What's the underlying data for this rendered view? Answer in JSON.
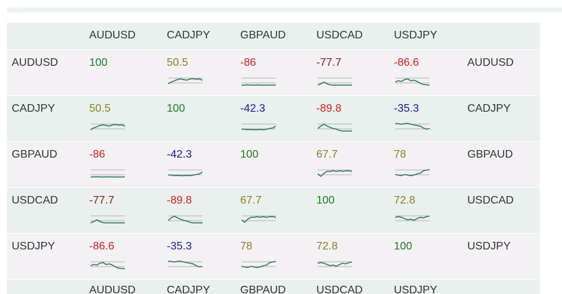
{
  "symbols": [
    "AUDUSD",
    "CADJPY",
    "GBPAUD",
    "USDCAD",
    "USDJPY"
  ],
  "colors": {
    "strong_positive": "#1b7d1b",
    "moderate_positive": "#8a8220",
    "strong_negative": "#d01e1e",
    "dark_negative": "#8a1a1a",
    "moderate_negative": "#1a1a8c",
    "sparkline": "#2e7d5b",
    "sparkline_baseline": "#b5b5b5"
  },
  "rows": [
    {
      "label": "AUDUSD",
      "cells": [
        {
          "value": "100",
          "tone": "strong_positive",
          "spark": null
        },
        {
          "value": "50.5",
          "tone": "moderate_positive",
          "spark": [
            0.2,
            0.35,
            0.45,
            0.55,
            0.6,
            0.55,
            0.5,
            0.6,
            0.62,
            0.58,
            0.6,
            0.5
          ]
        },
        {
          "value": "-86",
          "tone": "strong_negative",
          "spark": [
            0.1,
            0.1,
            0.12,
            0.1,
            0.1,
            0.11,
            0.1,
            0.1,
            0.1,
            0.1,
            0.1,
            0.1
          ]
        },
        {
          "value": "-77.7",
          "tone": "dark_negative",
          "spark": [
            0.1,
            0.2,
            0.35,
            0.2,
            0.12,
            0.1,
            0.1,
            0.1,
            0.1,
            0.1,
            0.1,
            0.1
          ]
        },
        {
          "value": "-86.6",
          "tone": "strong_negative",
          "spark": [
            0.35,
            0.45,
            0.4,
            0.55,
            0.6,
            0.45,
            0.5,
            0.4,
            0.25,
            0.15,
            0.12,
            0.1
          ]
        }
      ]
    },
    {
      "label": "CADJPY",
      "cells": [
        {
          "value": "50.5",
          "tone": "moderate_positive",
          "spark": [
            0.2,
            0.35,
            0.45,
            0.55,
            0.6,
            0.55,
            0.5,
            0.6,
            0.62,
            0.58,
            0.6,
            0.5
          ]
        },
        {
          "value": "100",
          "tone": "strong_positive",
          "spark": null
        },
        {
          "value": "-42.3",
          "tone": "moderate_negative",
          "spark": [
            0.25,
            0.25,
            0.2,
            0.22,
            0.2,
            0.2,
            0.22,
            0.2,
            0.25,
            0.3,
            0.35,
            0.5
          ]
        },
        {
          "value": "-89.8",
          "tone": "strong_negative",
          "spark": [
            0.3,
            0.5,
            0.65,
            0.5,
            0.4,
            0.3,
            0.25,
            0.15,
            0.1,
            0.1,
            0.1,
            0.1
          ]
        },
        {
          "value": "-35.3",
          "tone": "moderate_negative",
          "spark": [
            0.7,
            0.7,
            0.65,
            0.7,
            0.72,
            0.65,
            0.6,
            0.55,
            0.5,
            0.35,
            0.25,
            0.3
          ]
        }
      ]
    },
    {
      "label": "GBPAUD",
      "cells": [
        {
          "value": "-86",
          "tone": "strong_negative",
          "spark": [
            0.1,
            0.1,
            0.12,
            0.1,
            0.1,
            0.11,
            0.1,
            0.1,
            0.1,
            0.1,
            0.1,
            0.1
          ]
        },
        {
          "value": "-42.3",
          "tone": "moderate_negative",
          "spark": [
            0.25,
            0.25,
            0.2,
            0.22,
            0.2,
            0.2,
            0.22,
            0.2,
            0.25,
            0.3,
            0.35,
            0.5
          ]
        },
        {
          "value": "100",
          "tone": "strong_positive",
          "spark": null
        },
        {
          "value": "67.7",
          "tone": "moderate_positive",
          "spark": [
            0.35,
            0.15,
            0.4,
            0.55,
            0.55,
            0.6,
            0.55,
            0.6,
            0.55,
            0.6,
            0.6,
            0.55
          ]
        },
        {
          "value": "78",
          "tone": "moderate_positive",
          "spark": [
            0.3,
            0.25,
            0.2,
            0.3,
            0.25,
            0.2,
            0.25,
            0.35,
            0.4,
            0.6,
            0.65,
            0.7
          ]
        }
      ]
    },
    {
      "label": "USDCAD",
      "cells": [
        {
          "value": "-77.7",
          "tone": "dark_negative",
          "spark": [
            0.1,
            0.2,
            0.35,
            0.2,
            0.12,
            0.1,
            0.1,
            0.1,
            0.1,
            0.1,
            0.1,
            0.1
          ]
        },
        {
          "value": "-89.8",
          "tone": "strong_negative",
          "spark": [
            0.3,
            0.5,
            0.65,
            0.5,
            0.4,
            0.3,
            0.25,
            0.15,
            0.1,
            0.1,
            0.1,
            0.1
          ]
        },
        {
          "value": "67.7",
          "tone": "moderate_positive",
          "spark": [
            0.35,
            0.15,
            0.4,
            0.55,
            0.55,
            0.6,
            0.55,
            0.6,
            0.55,
            0.6,
            0.6,
            0.55
          ]
        },
        {
          "value": "100",
          "tone": "strong_positive",
          "spark": null
        },
        {
          "value": "72.8",
          "tone": "moderate_positive",
          "spark": [
            0.55,
            0.6,
            0.55,
            0.45,
            0.35,
            0.4,
            0.3,
            0.45,
            0.55,
            0.5,
            0.6,
            0.65
          ]
        }
      ]
    },
    {
      "label": "USDJPY",
      "cells": [
        {
          "value": "-86.6",
          "tone": "strong_negative",
          "spark": [
            0.35,
            0.45,
            0.4,
            0.55,
            0.6,
            0.45,
            0.5,
            0.4,
            0.25,
            0.15,
            0.12,
            0.1
          ]
        },
        {
          "value": "-35.3",
          "tone": "moderate_negative",
          "spark": [
            0.7,
            0.7,
            0.65,
            0.7,
            0.72,
            0.65,
            0.6,
            0.55,
            0.5,
            0.35,
            0.25,
            0.3
          ]
        },
        {
          "value": "78",
          "tone": "moderate_positive",
          "spark": [
            0.3,
            0.25,
            0.2,
            0.3,
            0.25,
            0.2,
            0.25,
            0.35,
            0.4,
            0.6,
            0.65,
            0.7
          ]
        },
        {
          "value": "72.8",
          "tone": "moderate_positive",
          "spark": [
            0.55,
            0.6,
            0.55,
            0.45,
            0.35,
            0.4,
            0.3,
            0.45,
            0.55,
            0.5,
            0.6,
            0.65
          ]
        },
        {
          "value": "100",
          "tone": "strong_positive",
          "spark": null
        }
      ]
    }
  ]
}
